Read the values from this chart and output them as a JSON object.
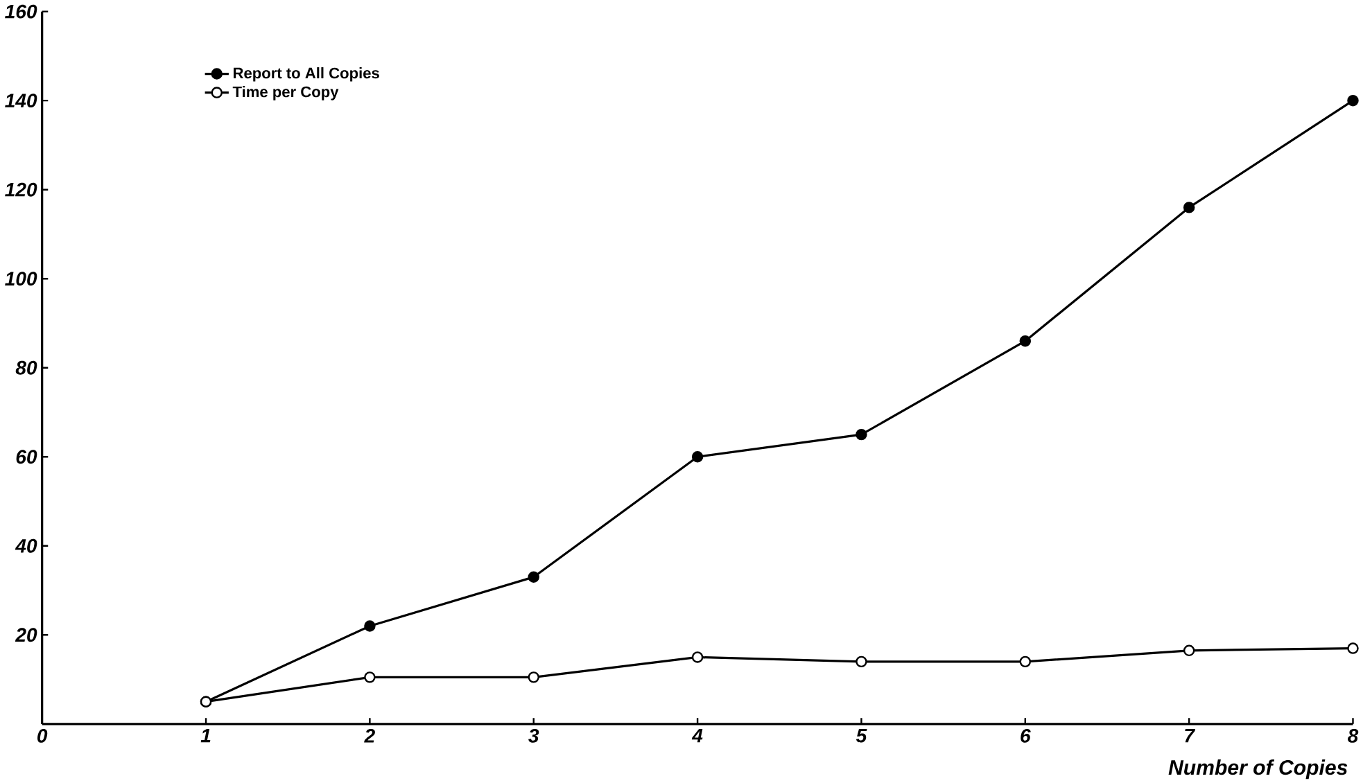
{
  "chart_data": {
    "type": "line",
    "xlabel": "Number of Copies",
    "x": [
      1,
      2,
      3,
      4,
      5,
      6,
      7,
      8
    ],
    "series": [
      {
        "name": "Report to All Copies",
        "color": "#000000",
        "marker": "circle",
        "values": [
          5,
          22,
          33,
          60,
          65,
          86,
          116,
          140
        ]
      },
      {
        "name": "Time per Copy",
        "color": "#000000",
        "marker": "circle",
        "values": [
          5,
          10.5,
          10.5,
          15,
          14,
          14,
          16.5,
          17
        ]
      }
    ],
    "xlim": [
      0,
      8
    ],
    "xticks": [
      0,
      1,
      2,
      3,
      4,
      5,
      6,
      7,
      8
    ],
    "ylim": [
      0,
      160
    ],
    "yticks": [
      20,
      40,
      60,
      80,
      100,
      120,
      140,
      160
    ],
    "legend": "top left",
    "grid": false
  }
}
